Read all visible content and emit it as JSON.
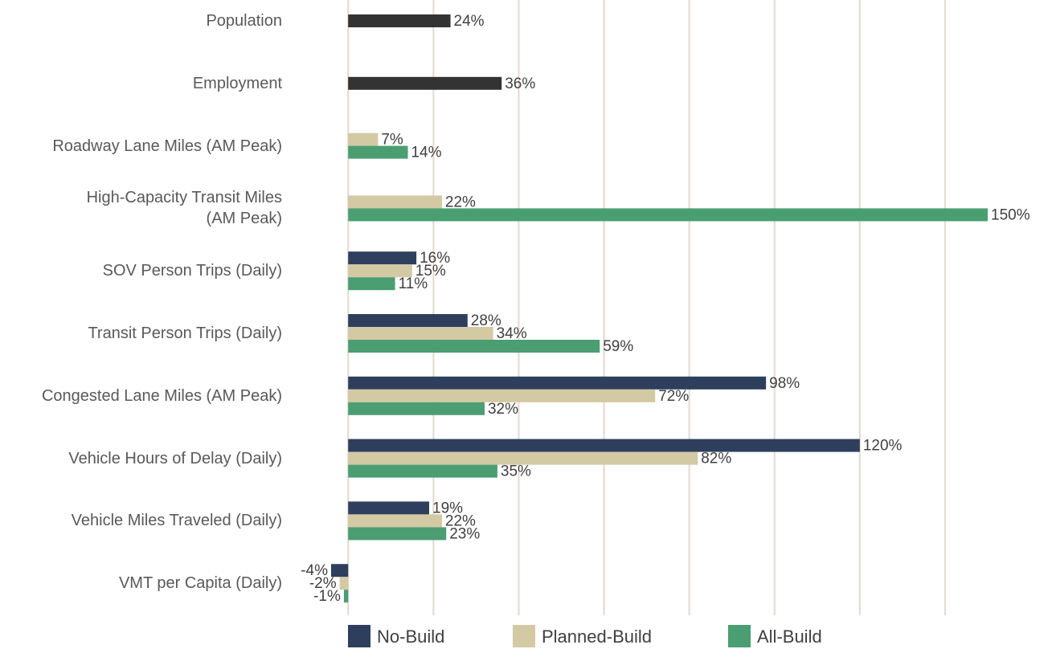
{
  "chart_data": {
    "type": "hbar",
    "categories": [
      "Population",
      "Employment",
      "Roadway Lane Miles (AM Peak)",
      "High-Capacity Transit Miles\n(AM Peak)",
      "SOV Person Trips (Daily)",
      "Transit Person Trips (Daily)",
      "Congested Lane Miles (AM Peak)",
      "Vehicle Hours of Delay (Daily)",
      "Vehicle Miles Traveled (Daily)",
      "VMT per Capita (Daily)"
    ],
    "series": [
      {
        "color": "#333333",
        "values": [
          24,
          36,
          null,
          null,
          null,
          null,
          null,
          null,
          null,
          null
        ],
        "value_labels": [
          "24%",
          "36%",
          null,
          null,
          null,
          null,
          null,
          null,
          null,
          null
        ]
      },
      {
        "name": "No-Build",
        "color": "#2e3f5e",
        "values": [
          null,
          null,
          null,
          null,
          16,
          28,
          98,
          120,
          19,
          -4
        ],
        "value_labels": [
          null,
          null,
          null,
          null,
          "16%",
          "28%",
          "98%",
          "120%",
          "19%",
          "-4%"
        ]
      },
      {
        "name": "Planned-Build",
        "color": "#d3c9a3",
        "values": [
          null,
          null,
          7,
          22,
          15,
          34,
          72,
          82,
          22,
          -2
        ],
        "value_labels": [
          null,
          null,
          "7%",
          "22%",
          "15%",
          "34%",
          "72%",
          "82%",
          "22%",
          "-2%"
        ]
      },
      {
        "name": "All-Build",
        "color": "#4a9e72",
        "values": [
          null,
          null,
          14,
          150,
          11,
          59,
          32,
          35,
          23,
          -1
        ],
        "value_labels": [
          null,
          null,
          "14%",
          "150%",
          "11%",
          "59%",
          "32%",
          "35%",
          "23%",
          "-1%"
        ]
      }
    ],
    "xlim": [
      -4,
      150
    ],
    "xticks": [
      0,
      20,
      40,
      60,
      80,
      100,
      120,
      140
    ],
    "grid": true
  }
}
